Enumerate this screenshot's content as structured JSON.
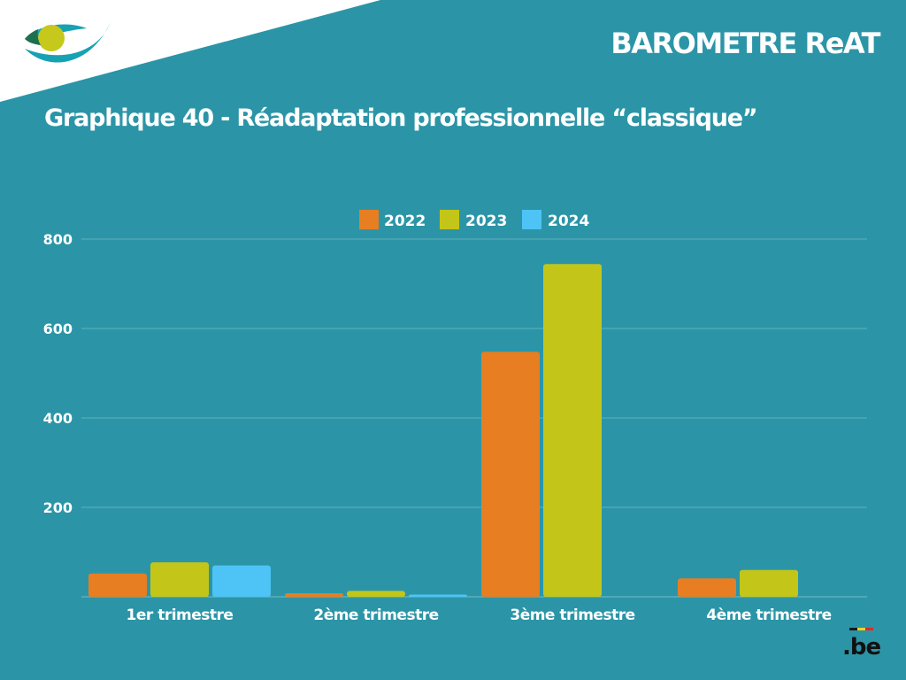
{
  "header": {
    "brand": "BAROMETRE ReAT",
    "title": "Graphique 40 - Réadaptation professionnelle “classique”"
  },
  "logos": {
    "top_left": "institution-eye-logo",
    "bottom_right": ".be"
  },
  "colors": {
    "background": "#2b95a7",
    "corner": "#ffffff",
    "series_2022": "#e77e22",
    "series_2023": "#c3c619",
    "series_2024": "#4dc4f5",
    "text": "#ffffff"
  },
  "chart_data": {
    "type": "bar",
    "categories": [
      "1er trimestre",
      "2ème trimestre",
      "3ème trimestre",
      "4ème trimestre"
    ],
    "series": [
      {
        "name": "2022",
        "values": [
          52,
          8,
          548,
          41
        ]
      },
      {
        "name": "2023",
        "values": [
          77,
          13,
          744,
          60
        ]
      },
      {
        "name": "2024",
        "values": [
          70,
          5,
          null,
          null
        ]
      }
    ],
    "y_ticks": [
      200,
      400,
      600,
      800
    ],
    "ylim": [
      0,
      800
    ],
    "legend_position": "top-center",
    "grid": true
  }
}
